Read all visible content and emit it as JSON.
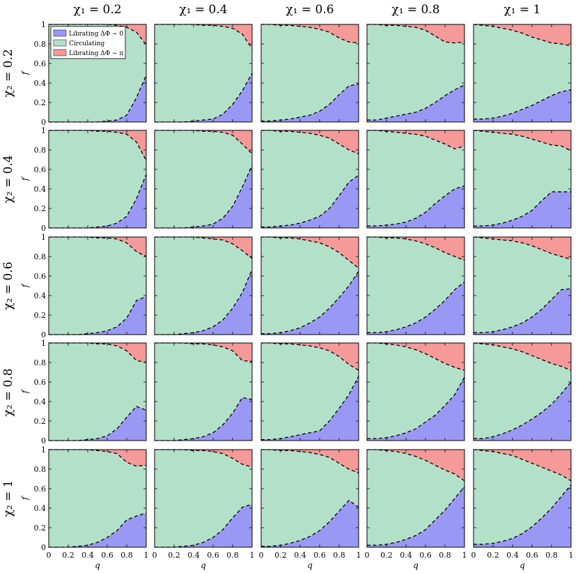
{
  "figure": {
    "column_titles": [
      "χ₁ = 0.2",
      "χ₁ = 0.4",
      "χ₁ = 0.6",
      "χ₁ = 0.8",
      "χ₁ = 1"
    ],
    "row_titles": [
      "χ₂ = 0.2",
      "χ₂ = 0.4",
      "χ₂ = 0.6",
      "χ₂ = 0.8",
      "χ₂ = 1"
    ],
    "ylabel": "f",
    "xlabel": "q",
    "legend": [
      {
        "label": "Librating   ΔΦ ~ 0",
        "color": "#9999f5"
      },
      {
        "label": "Circulating",
        "color": "#b3e0c9"
      },
      {
        "label": "Librating   ΔΦ ~ π",
        "color": "#f59999"
      }
    ],
    "x_ticks": [
      "0",
      "0.2",
      "0.4",
      "0.6",
      "0.8",
      "1"
    ],
    "y_ticks": [
      "0",
      "0.2",
      "0.4",
      "0.6",
      "0.8",
      "1"
    ]
  },
  "chart_data": {
    "type": "area",
    "xlim": [
      0,
      1
    ],
    "ylim": [
      0,
      1
    ],
    "grid": false,
    "legend_placement": "top-left of first panel",
    "x": [
      0,
      0.1,
      0.2,
      0.3,
      0.4,
      0.5,
      0.6,
      0.7,
      0.8,
      0.9,
      1.0
    ],
    "panels": [
      {
        "row": 0,
        "col": 0,
        "lower": [
          0,
          0,
          0,
          0,
          0,
          0,
          0.01,
          0.02,
          0.07,
          0.25,
          0.48
        ],
        "upper": [
          1,
          1,
          1,
          1,
          1,
          1,
          1,
          0.99,
          0.97,
          0.92,
          0.79
        ]
      },
      {
        "row": 0,
        "col": 1,
        "lower": [
          0,
          0,
          0,
          0,
          0.01,
          0.02,
          0.03,
          0.08,
          0.18,
          0.32,
          0.5
        ],
        "upper": [
          1,
          1,
          1,
          1,
          1,
          0.99,
          0.99,
          0.98,
          0.96,
          0.9,
          0.75
        ]
      },
      {
        "row": 0,
        "col": 2,
        "lower": [
          0.01,
          0.01,
          0.02,
          0.03,
          0.05,
          0.07,
          0.11,
          0.18,
          0.28,
          0.37,
          0.39
        ],
        "upper": [
          1,
          1,
          0.99,
          0.99,
          0.98,
          0.97,
          0.95,
          0.92,
          0.86,
          0.82,
          0.81
        ]
      },
      {
        "row": 0,
        "col": 3,
        "lower": [
          0.02,
          0.02,
          0.04,
          0.06,
          0.08,
          0.1,
          0.14,
          0.2,
          0.27,
          0.33,
          0.38
        ],
        "upper": [
          1,
          1,
          0.99,
          0.99,
          0.98,
          0.97,
          0.94,
          0.88,
          0.82,
          0.81,
          0.82
        ]
      },
      {
        "row": 0,
        "col": 4,
        "lower": [
          0.03,
          0.03,
          0.04,
          0.06,
          0.09,
          0.13,
          0.17,
          0.22,
          0.27,
          0.31,
          0.33
        ],
        "upper": [
          1,
          0.99,
          0.98,
          0.96,
          0.94,
          0.91,
          0.87,
          0.84,
          0.81,
          0.8,
          0.78
        ]
      },
      {
        "row": 1,
        "col": 0,
        "lower": [
          0,
          0,
          0,
          0,
          0,
          0.01,
          0.02,
          0.05,
          0.12,
          0.3,
          0.55
        ],
        "upper": [
          1,
          1,
          1,
          1,
          1,
          0.99,
          0.99,
          0.98,
          0.96,
          0.88,
          0.69
        ]
      },
      {
        "row": 1,
        "col": 1,
        "lower": [
          0,
          0,
          0,
          0,
          0.01,
          0.02,
          0.04,
          0.1,
          0.22,
          0.42,
          0.64
        ],
        "upper": [
          1,
          1,
          1,
          1,
          1,
          0.99,
          0.99,
          0.98,
          0.95,
          0.86,
          0.76
        ]
      },
      {
        "row": 1,
        "col": 2,
        "lower": [
          0.01,
          0.01,
          0.02,
          0.03,
          0.05,
          0.08,
          0.12,
          0.2,
          0.33,
          0.47,
          0.54
        ],
        "upper": [
          1,
          1,
          0.99,
          0.99,
          0.98,
          0.97,
          0.95,
          0.92,
          0.86,
          0.8,
          0.76
        ]
      },
      {
        "row": 1,
        "col": 3,
        "lower": [
          0.02,
          0.02,
          0.03,
          0.04,
          0.06,
          0.1,
          0.16,
          0.25,
          0.33,
          0.4,
          0.43
        ],
        "upper": [
          1,
          1,
          0.99,
          0.98,
          0.97,
          0.96,
          0.94,
          0.9,
          0.86,
          0.81,
          0.84
        ]
      },
      {
        "row": 1,
        "col": 4,
        "lower": [
          0.02,
          0.02,
          0.03,
          0.05,
          0.08,
          0.12,
          0.18,
          0.28,
          0.37,
          0.37,
          0.37
        ],
        "upper": [
          1,
          0.99,
          0.98,
          0.97,
          0.96,
          0.94,
          0.91,
          0.88,
          0.85,
          0.84,
          0.79
        ]
      },
      {
        "row": 2,
        "col": 0,
        "lower": [
          0,
          0,
          0,
          0,
          0.01,
          0.02,
          0.04,
          0.08,
          0.17,
          0.35,
          0.39
        ],
        "upper": [
          1,
          1,
          1,
          1,
          1,
          0.99,
          0.99,
          0.98,
          0.94,
          0.85,
          0.8
        ]
      },
      {
        "row": 2,
        "col": 1,
        "lower": [
          0,
          0,
          0,
          0.01,
          0.02,
          0.04,
          0.08,
          0.15,
          0.27,
          0.43,
          0.67
        ],
        "upper": [
          1,
          1,
          1,
          1,
          1,
          0.99,
          0.98,
          0.97,
          0.93,
          0.86,
          0.78
        ]
      },
      {
        "row": 2,
        "col": 2,
        "lower": [
          0.01,
          0.01,
          0.02,
          0.04,
          0.07,
          0.12,
          0.18,
          0.27,
          0.38,
          0.5,
          0.65
        ],
        "upper": [
          1,
          1,
          0.99,
          0.99,
          0.98,
          0.96,
          0.94,
          0.9,
          0.84,
          0.76,
          0.68
        ]
      },
      {
        "row": 2,
        "col": 3,
        "lower": [
          0.02,
          0.02,
          0.03,
          0.05,
          0.08,
          0.12,
          0.18,
          0.26,
          0.35,
          0.46,
          0.54
        ],
        "upper": [
          1,
          1,
          0.99,
          0.99,
          0.98,
          0.96,
          0.93,
          0.89,
          0.84,
          0.8,
          0.76
        ]
      },
      {
        "row": 2,
        "col": 4,
        "lower": [
          0.02,
          0.02,
          0.03,
          0.05,
          0.08,
          0.12,
          0.18,
          0.26,
          0.36,
          0.46,
          0.47
        ],
        "upper": [
          1,
          0.99,
          0.98,
          0.97,
          0.96,
          0.94,
          0.91,
          0.87,
          0.83,
          0.8,
          0.77
        ]
      },
      {
        "row": 3,
        "col": 0,
        "lower": [
          0,
          0,
          0,
          0,
          0.01,
          0.02,
          0.05,
          0.12,
          0.24,
          0.35,
          0.31
        ],
        "upper": [
          1,
          1,
          1,
          1,
          1,
          0.99,
          0.99,
          0.97,
          0.92,
          0.82,
          0.8
        ]
      },
      {
        "row": 3,
        "col": 1,
        "lower": [
          0,
          0,
          0,
          0.01,
          0.02,
          0.04,
          0.08,
          0.16,
          0.28,
          0.44,
          0.42
        ],
        "upper": [
          1,
          1,
          1,
          1,
          0.99,
          0.99,
          0.98,
          0.96,
          0.92,
          0.82,
          0.81
        ]
      },
      {
        "row": 3,
        "col": 2,
        "lower": [
          0.01,
          0.01,
          0.02,
          0.04,
          0.06,
          0.08,
          0.1,
          0.2,
          0.33,
          0.47,
          0.66
        ],
        "upper": [
          1,
          1,
          0.99,
          0.99,
          0.98,
          0.97,
          0.95,
          0.92,
          0.86,
          0.78,
          0.72
        ]
      },
      {
        "row": 3,
        "col": 3,
        "lower": [
          0.02,
          0.02,
          0.03,
          0.05,
          0.08,
          0.12,
          0.19,
          0.26,
          0.36,
          0.47,
          0.65
        ],
        "upper": [
          1,
          1,
          0.99,
          0.98,
          0.96,
          0.93,
          0.89,
          0.84,
          0.79,
          0.75,
          0.72
        ]
      },
      {
        "row": 3,
        "col": 4,
        "lower": [
          0.02,
          0.02,
          0.04,
          0.07,
          0.11,
          0.16,
          0.22,
          0.29,
          0.37,
          0.48,
          0.6
        ],
        "upper": [
          1,
          0.99,
          0.98,
          0.96,
          0.94,
          0.91,
          0.87,
          0.83,
          0.79,
          0.76,
          0.72
        ]
      },
      {
        "row": 4,
        "col": 0,
        "lower": [
          0,
          0,
          0,
          0.01,
          0.02,
          0.05,
          0.1,
          0.17,
          0.28,
          0.32,
          0.35
        ],
        "upper": [
          1,
          1,
          1,
          1,
          1,
          0.99,
          0.98,
          0.96,
          0.87,
          0.83,
          0.84
        ]
      },
      {
        "row": 4,
        "col": 1,
        "lower": [
          0,
          0,
          0,
          0.01,
          0.02,
          0.05,
          0.1,
          0.18,
          0.3,
          0.41,
          0.44
        ],
        "upper": [
          1,
          1,
          1,
          1,
          0.99,
          0.99,
          0.98,
          0.96,
          0.91,
          0.85,
          0.82
        ]
      },
      {
        "row": 4,
        "col": 2,
        "lower": [
          0.01,
          0.01,
          0.02,
          0.04,
          0.07,
          0.11,
          0.17,
          0.26,
          0.37,
          0.48,
          0.41
        ],
        "upper": [
          1,
          1,
          0.99,
          0.99,
          0.98,
          0.97,
          0.95,
          0.92,
          0.86,
          0.8,
          0.76
        ]
      },
      {
        "row": 4,
        "col": 3,
        "lower": [
          0.02,
          0.02,
          0.03,
          0.05,
          0.08,
          0.12,
          0.18,
          0.28,
          0.38,
          0.5,
          0.62
        ],
        "upper": [
          1,
          1,
          0.99,
          0.98,
          0.96,
          0.93,
          0.89,
          0.84,
          0.79,
          0.75,
          0.68
        ]
      },
      {
        "row": 4,
        "col": 4,
        "lower": [
          0.03,
          0.03,
          0.04,
          0.06,
          0.09,
          0.14,
          0.21,
          0.3,
          0.4,
          0.52,
          0.64
        ],
        "upper": [
          1,
          0.99,
          0.98,
          0.96,
          0.94,
          0.9,
          0.86,
          0.82,
          0.78,
          0.74,
          0.68
        ]
      }
    ]
  }
}
